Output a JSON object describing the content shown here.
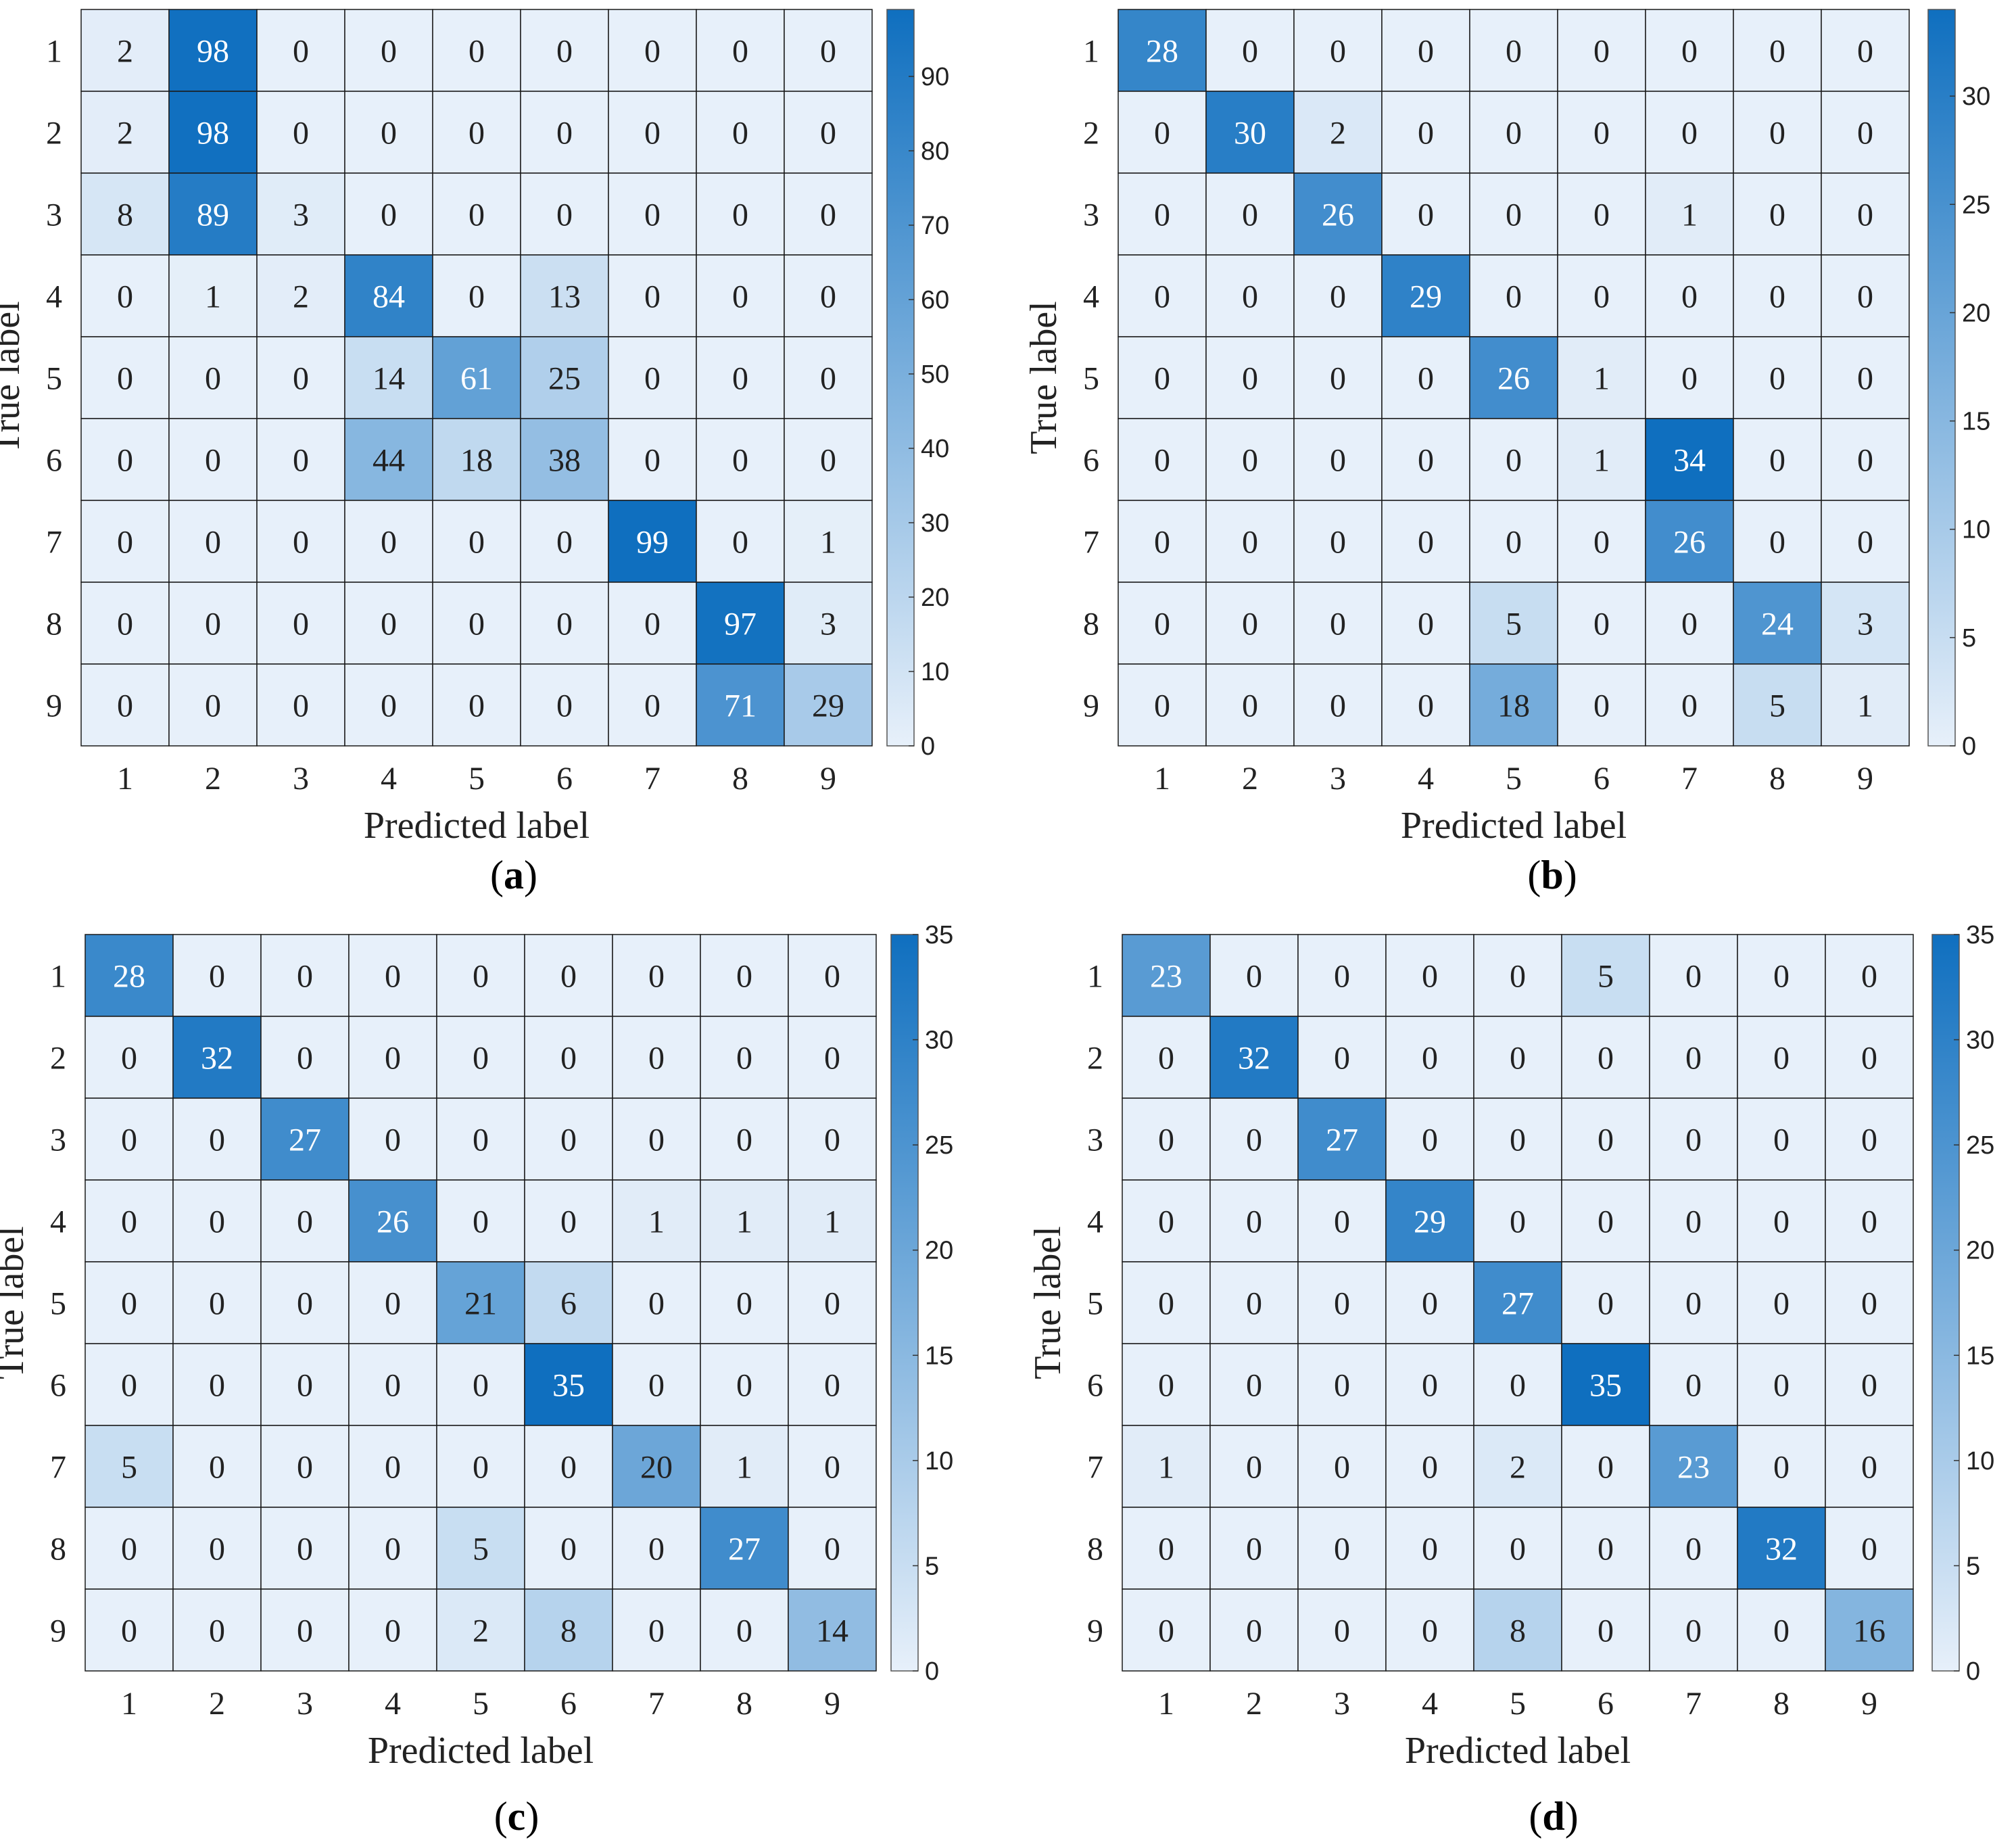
{
  "chart_data": [
    {
      "type": "heatmap",
      "panel": "a",
      "caption_letter": "a",
      "xlabel": "Predicted label",
      "ylabel": "True label",
      "x_ticks": [
        "1",
        "2",
        "3",
        "4",
        "5",
        "6",
        "7",
        "8",
        "9"
      ],
      "y_ticks": [
        "1",
        "2",
        "3",
        "4",
        "5",
        "6",
        "7",
        "8",
        "9"
      ],
      "colorbar": {
        "min": 0,
        "max": 99,
        "ticks": [
          0,
          10,
          20,
          30,
          40,
          50,
          60,
          70,
          80,
          90
        ]
      },
      "matrix": [
        [
          2,
          98,
          0,
          0,
          0,
          0,
          0,
          0,
          0
        ],
        [
          2,
          98,
          0,
          0,
          0,
          0,
          0,
          0,
          0
        ],
        [
          8,
          89,
          3,
          0,
          0,
          0,
          0,
          0,
          0
        ],
        [
          0,
          1,
          2,
          84,
          0,
          13,
          0,
          0,
          0
        ],
        [
          0,
          0,
          0,
          14,
          61,
          25,
          0,
          0,
          0
        ],
        [
          0,
          0,
          0,
          44,
          18,
          38,
          0,
          0,
          0
        ],
        [
          0,
          0,
          0,
          0,
          0,
          0,
          99,
          0,
          1
        ],
        [
          0,
          0,
          0,
          0,
          0,
          0,
          0,
          97,
          3
        ],
        [
          0,
          0,
          0,
          0,
          0,
          0,
          0,
          71,
          29
        ]
      ]
    },
    {
      "type": "heatmap",
      "panel": "b",
      "caption_letter": "b",
      "xlabel": "Predicted label",
      "ylabel": "True label",
      "x_ticks": [
        "1",
        "2",
        "3",
        "4",
        "5",
        "6",
        "7",
        "8",
        "9"
      ],
      "y_ticks": [
        "1",
        "2",
        "3",
        "4",
        "5",
        "6",
        "7",
        "8",
        "9"
      ],
      "colorbar": {
        "min": 0,
        "max": 34,
        "ticks": [
          0,
          5,
          10,
          15,
          20,
          25,
          30
        ]
      },
      "matrix": [
        [
          28,
          0,
          0,
          0,
          0,
          0,
          0,
          0,
          0
        ],
        [
          0,
          30,
          2,
          0,
          0,
          0,
          0,
          0,
          0
        ],
        [
          0,
          0,
          26,
          0,
          0,
          0,
          1,
          0,
          0
        ],
        [
          0,
          0,
          0,
          29,
          0,
          0,
          0,
          0,
          0
        ],
        [
          0,
          0,
          0,
          0,
          26,
          1,
          0,
          0,
          0
        ],
        [
          0,
          0,
          0,
          0,
          0,
          1,
          34,
          0,
          0
        ],
        [
          0,
          0,
          0,
          0,
          0,
          0,
          26,
          0,
          0
        ],
        [
          0,
          0,
          0,
          0,
          5,
          0,
          0,
          24,
          3
        ],
        [
          0,
          0,
          0,
          0,
          18,
          0,
          0,
          5,
          1
        ]
      ]
    },
    {
      "type": "heatmap",
      "panel": "c",
      "caption_letter": "c",
      "xlabel": "Predicted label",
      "ylabel": "True label",
      "x_ticks": [
        "1",
        "2",
        "3",
        "4",
        "5",
        "6",
        "7",
        "8",
        "9"
      ],
      "y_ticks": [
        "1",
        "2",
        "3",
        "4",
        "5",
        "6",
        "7",
        "8",
        "9"
      ],
      "colorbar": {
        "min": 0,
        "max": 35,
        "ticks": [
          0,
          5,
          10,
          15,
          20,
          25,
          30,
          35
        ]
      },
      "matrix": [
        [
          28,
          0,
          0,
          0,
          0,
          0,
          0,
          0,
          0
        ],
        [
          0,
          32,
          0,
          0,
          0,
          0,
          0,
          0,
          0
        ],
        [
          0,
          0,
          27,
          0,
          0,
          0,
          0,
          0,
          0
        ],
        [
          0,
          0,
          0,
          26,
          0,
          0,
          1,
          1,
          1
        ],
        [
          0,
          0,
          0,
          0,
          21,
          6,
          0,
          0,
          0
        ],
        [
          0,
          0,
          0,
          0,
          0,
          35,
          0,
          0,
          0
        ],
        [
          5,
          0,
          0,
          0,
          0,
          0,
          20,
          1,
          0
        ],
        [
          0,
          0,
          0,
          0,
          5,
          0,
          0,
          27,
          0
        ],
        [
          0,
          0,
          0,
          0,
          2,
          8,
          0,
          0,
          14
        ]
      ]
    },
    {
      "type": "heatmap",
      "panel": "d",
      "caption_letter": "d",
      "xlabel": "Predicted label",
      "ylabel": "True label",
      "x_ticks": [
        "1",
        "2",
        "3",
        "4",
        "5",
        "6",
        "7",
        "8",
        "9"
      ],
      "y_ticks": [
        "1",
        "2",
        "3",
        "4",
        "5",
        "6",
        "7",
        "8",
        "9"
      ],
      "colorbar": {
        "min": 0,
        "max": 35,
        "ticks": [
          0,
          5,
          10,
          15,
          20,
          25,
          30,
          35
        ]
      },
      "matrix": [
        [
          23,
          0,
          0,
          0,
          0,
          5,
          0,
          0,
          0
        ],
        [
          0,
          32,
          0,
          0,
          0,
          0,
          0,
          0,
          0
        ],
        [
          0,
          0,
          27,
          0,
          0,
          0,
          0,
          0,
          0
        ],
        [
          0,
          0,
          0,
          29,
          0,
          0,
          0,
          0,
          0
        ],
        [
          0,
          0,
          0,
          0,
          27,
          0,
          0,
          0,
          0
        ],
        [
          0,
          0,
          0,
          0,
          0,
          35,
          0,
          0,
          0
        ],
        [
          1,
          0,
          0,
          0,
          2,
          0,
          23,
          0,
          0
        ],
        [
          0,
          0,
          0,
          0,
          0,
          0,
          0,
          32,
          0
        ],
        [
          0,
          0,
          0,
          0,
          8,
          0,
          0,
          0,
          16
        ]
      ]
    }
  ],
  "colors": {
    "low": "#e7f0fa",
    "high": "#0f6fbf",
    "grid": "#1a1a1a",
    "text_dark": "#222222",
    "text_light": "#ffffff"
  }
}
